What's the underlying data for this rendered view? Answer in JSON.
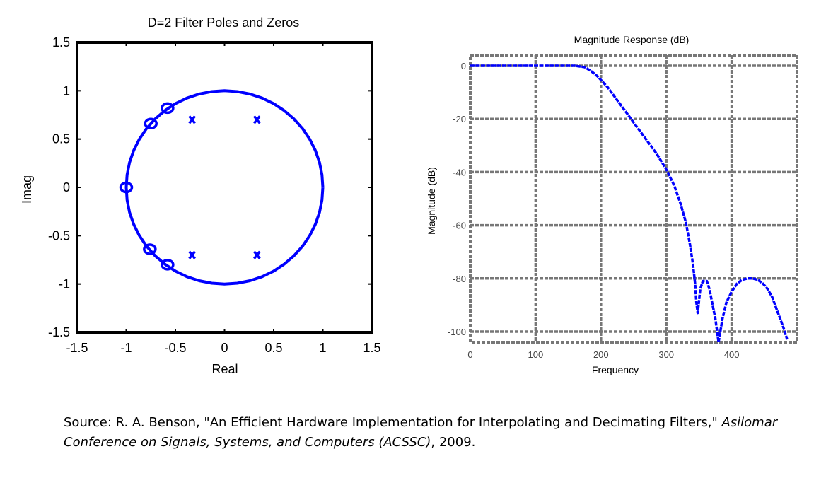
{
  "chart_data": [
    {
      "type": "scatter",
      "title": "D=2 Filter Poles and Zeros",
      "xlabel": "Real",
      "ylabel": "Imag",
      "xlim": [
        -1.5,
        1.5
      ],
      "ylim": [
        -1.5,
        1.5
      ],
      "xticks": [
        "-1.5",
        "-1",
        "-0.5",
        "0",
        "0.5",
        "1",
        "1.5"
      ],
      "yticks": [
        "1.5",
        "1",
        "0.5",
        "0",
        "-0.5",
        "-1",
        "-1.5"
      ],
      "grid": false,
      "unit_circle": true,
      "zeros": [
        {
          "x": -0.58,
          "y": 0.82
        },
        {
          "x": -0.75,
          "y": 0.66
        },
        {
          "x": -1.0,
          "y": 0.0
        },
        {
          "x": -0.76,
          "y": -0.64
        },
        {
          "x": -0.58,
          "y": -0.8
        }
      ],
      "poles": [
        {
          "x": -0.33,
          "y": 0.7
        },
        {
          "x": 0.33,
          "y": 0.7
        },
        {
          "x": -0.33,
          "y": -0.7
        },
        {
          "x": 0.33,
          "y": -0.7
        }
      ],
      "color": "#0000ff"
    },
    {
      "type": "line",
      "title": "Magnitude Response (dB)",
      "xlabel": "Frequency",
      "ylabel": "Magnitude (dB)",
      "xlim": [
        0,
        500
      ],
      "ylim": [
        -104,
        4
      ],
      "xticks": [
        "0",
        "100",
        "200",
        "300",
        "400"
      ],
      "yticks": [
        "0",
        "-20",
        "-40",
        "-60",
        "-80",
        "-100"
      ],
      "grid": true,
      "color": "#0000ff",
      "x": [
        0,
        160,
        175,
        185,
        195,
        210,
        225,
        240,
        255,
        270,
        285,
        300,
        312,
        322,
        330,
        336,
        341,
        344,
        346,
        348,
        352,
        356,
        362,
        366,
        370,
        375,
        380,
        386,
        392,
        400,
        408,
        416,
        424,
        432,
        440,
        448,
        455,
        462,
        468,
        474,
        480,
        485
      ],
      "y": [
        0,
        0,
        -0.5,
        -2,
        -4,
        -8,
        -13,
        -18,
        -23,
        -28,
        -33,
        -39,
        -45,
        -52,
        -59,
        -67,
        -75,
        -82,
        -89,
        -93,
        -84,
        -81,
        -81,
        -84,
        -89,
        -95,
        -104,
        -95,
        -89,
        -85,
        -82,
        -80.5,
        -80,
        -80,
        -80.5,
        -82,
        -84,
        -87,
        -91,
        -95,
        -99,
        -103
      ]
    }
  ],
  "caption": {
    "prefix": "Source:  R. A. Benson, \"An Efficient Hardware Implementation for Interpolating and Decimating Filters,\" ",
    "venue": "Asilomar Conference on Signals, Systems, and Computers (ACSSC)",
    "suffix": ", 2009."
  }
}
